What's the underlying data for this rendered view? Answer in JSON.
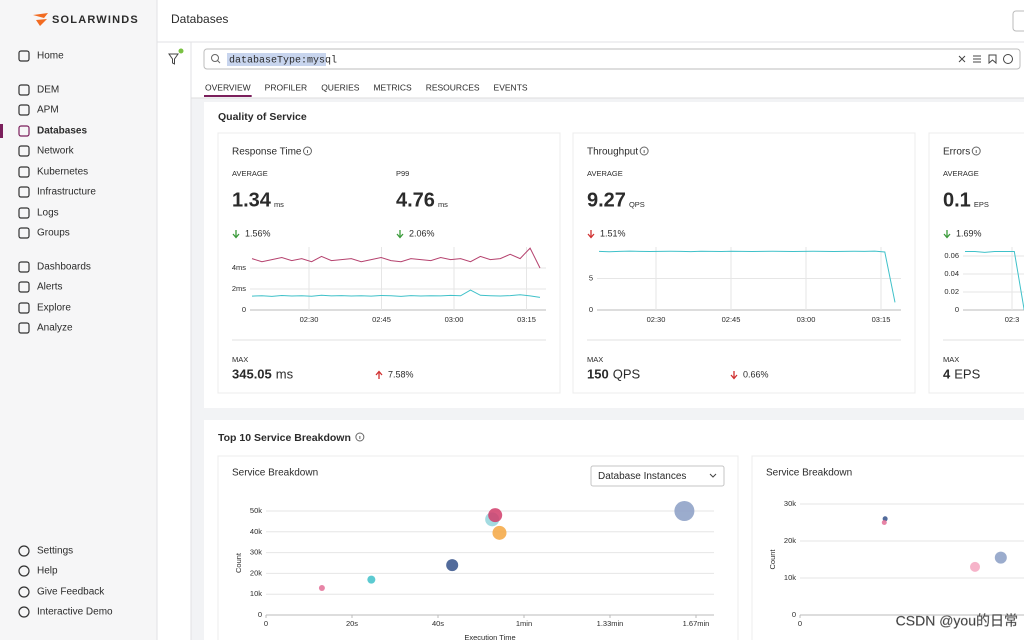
{
  "brand": "SOLARWINDS",
  "nav": {
    "main": [
      "Home",
      "DEM",
      "APM",
      "Databases",
      "Network",
      "Kubernetes",
      "Infrastructure",
      "Logs",
      "Groups",
      "Dashboards",
      "Alerts",
      "Explore",
      "Analyze"
    ],
    "active": 3,
    "bottom": [
      "Settings",
      "Help",
      "Give Feedback",
      "Interactive Demo"
    ]
  },
  "header": {
    "title": "Databases"
  },
  "search": {
    "query": "databaseType:mysql"
  },
  "tabs": {
    "items": [
      "OVERVIEW",
      "PROFILER",
      "QUERIES",
      "METRICS",
      "RESOURCES",
      "EVENTS"
    ],
    "active": 0
  },
  "qos": {
    "title": "Quality of Service",
    "cards": [
      {
        "title": "Response Time",
        "metrics": [
          {
            "label": "AVERAGE",
            "value": 1.34,
            "unit": "ms",
            "change": "1.56%",
            "direction": "down",
            "color": "#3a9a3a"
          },
          {
            "label": "P99",
            "value": 4.76,
            "unit": "ms",
            "change": "2.06%",
            "direction": "down",
            "color": "#3a9a3a"
          }
        ],
        "chart": {
          "ylim": [
            0,
            6
          ],
          "yticks": [
            0,
            {
              "value": 2,
              "label": "2ms"
            },
            {
              "value": 4,
              "label": "4ms"
            }
          ],
          "xticks": [
            "02:30",
            "02:45",
            "03:00",
            "03:15"
          ],
          "series": [
            {
              "color": "#b5426e",
              "values": [
                4.9,
                4.6,
                4.8,
                5.0,
                4.7,
                4.9,
                4.6,
                5.1,
                4.7,
                4.8,
                4.9,
                4.6,
                4.8,
                5.0,
                4.7,
                4.6,
                4.9,
                4.8,
                4.7,
                5.0,
                4.8,
                4.9,
                4.6,
                5.1,
                4.8,
                4.9,
                5.3,
                4.9,
                5.9,
                4.0
              ]
            },
            {
              "color": "#3fc1c9",
              "values": [
                1.32,
                1.35,
                1.3,
                1.38,
                1.33,
                1.36,
                1.31,
                1.4,
                1.34,
                1.37,
                1.33,
                1.36,
                1.32,
                1.38,
                1.35,
                1.3,
                1.37,
                1.33,
                1.36,
                1.34,
                1.39,
                1.35,
                1.9,
                1.4,
                1.36,
                1.33,
                1.37,
                1.45,
                1.34,
                1.2
              ]
            }
          ]
        },
        "max": {
          "label": "MAX",
          "value": 345.05,
          "unit": "ms",
          "change": "7.58%",
          "direction": "up",
          "color": "#d03030"
        }
      },
      {
        "title": "Throughput",
        "metrics": [
          {
            "label": "AVERAGE",
            "value": 9.27,
            "unit": "QPS",
            "change": "1.51%",
            "direction": "down",
            "color": "#d03030"
          }
        ],
        "chart": {
          "ylim": [
            0,
            10
          ],
          "yticks": [
            0,
            5
          ],
          "xticks": [
            "02:30",
            "02:45",
            "03:00",
            "03:15"
          ],
          "series": [
            {
              "color": "#3fc1c9",
              "values": [
                9.3,
                9.25,
                9.3,
                9.35,
                9.3,
                9.28,
                9.3,
                9.32,
                9.3,
                9.27,
                9.31,
                9.3,
                9.29,
                9.33,
                9.3,
                9.28,
                9.3,
                9.31,
                9.3,
                9.29,
                9.3,
                9.32,
                9.3,
                9.28,
                9.3,
                9.31,
                9.3,
                9.35,
                9.2,
                1.2
              ]
            }
          ]
        },
        "max": {
          "label": "MAX",
          "value": 150,
          "unit": "QPS",
          "change": "0.66%",
          "direction": "down",
          "color": "#d03030"
        }
      },
      {
        "title": "Errors",
        "metrics": [
          {
            "label": "AVERAGE",
            "value": 0.1,
            "unit": "EPS",
            "change": "1.69%",
            "direction": "down",
            "color": "#3a9a3a"
          }
        ],
        "chart": {
          "ylim": [
            0,
            0.07
          ],
          "yticks": [
            0,
            0.02,
            0.04,
            0.06
          ],
          "xticks": [
            "02:3"
          ],
          "series": [
            {
              "color": "#3fc1c9",
              "values": [
                0.065,
                0.065,
                0.064,
                0.065,
                0.065,
                0.065,
                0
              ]
            }
          ]
        },
        "max": {
          "label": "MAX",
          "value": 4,
          "unit": "EPS"
        }
      }
    ]
  },
  "breakdown": {
    "title": "Top 10 Service Breakdown",
    "cards": [
      {
        "title": "Service Breakdown",
        "dropdown": "Database Instances",
        "x_label": "Execution Time",
        "y_label": "Count",
        "xlim": [
          0,
          100
        ],
        "xticks": [
          0,
          {
            "value": 20,
            "label": "20s"
          },
          {
            "value": 40,
            "label": "40s"
          },
          {
            "value": 60,
            "label": "1min"
          },
          {
            "value": 80,
            "label": "1.33min"
          },
          {
            "value": 100,
            "label": "1.67min"
          }
        ],
        "ylim": [
          0,
          50000
        ],
        "yticks": [
          0,
          {
            "value": 10000,
            "label": "10k"
          },
          {
            "value": 20000,
            "label": "20k"
          },
          {
            "value": 30000,
            "label": "30k"
          },
          {
            "value": 40000,
            "label": "40k"
          },
          {
            "value": 50000,
            "label": "50k"
          }
        ],
        "points": [
          {
            "x": 13,
            "y": 13000,
            "size": 3,
            "color": "#e36f97"
          },
          {
            "x": 24.5,
            "y": 17000,
            "size": 4,
            "color": "#3fc1c9"
          },
          {
            "x": 43.3,
            "y": 24000,
            "size": 6,
            "color": "#34518a"
          },
          {
            "x": 52.6,
            "y": 46000,
            "size": 7,
            "color": "#93d5dc"
          },
          {
            "x": 53.3,
            "y": 48000,
            "size": 7,
            "color": "#d13c6a"
          },
          {
            "x": 54.3,
            "y": 39500,
            "size": 7,
            "color": "#f5a742"
          },
          {
            "x": 97.3,
            "y": 50000,
            "size": 10,
            "color": "#8a9dc4"
          }
        ]
      },
      {
        "title": "Service Breakdown",
        "y_label": "Count",
        "xlim": [
          0,
          100
        ],
        "xticks": [
          0
        ],
        "ylim": [
          0,
          30000
        ],
        "yticks": [
          0,
          {
            "value": 10000,
            "label": "10k"
          },
          {
            "value": 20000,
            "label": "20k"
          },
          {
            "value": 30000,
            "label": "30k"
          }
        ],
        "points": [
          {
            "x": 19.8,
            "y": 26000,
            "size": 2.5,
            "color": "#34518a"
          },
          {
            "x": 19.6,
            "y": 25000,
            "size": 2.5,
            "color": "#e36f97"
          },
          {
            "x": 40.7,
            "y": 13000,
            "size": 5,
            "color": "#f4a6c0"
          },
          {
            "x": 46.7,
            "y": 15500,
            "size": 6,
            "color": "#8a9dc4"
          }
        ]
      }
    ]
  },
  "watermark": "CSDN @you的日常"
}
